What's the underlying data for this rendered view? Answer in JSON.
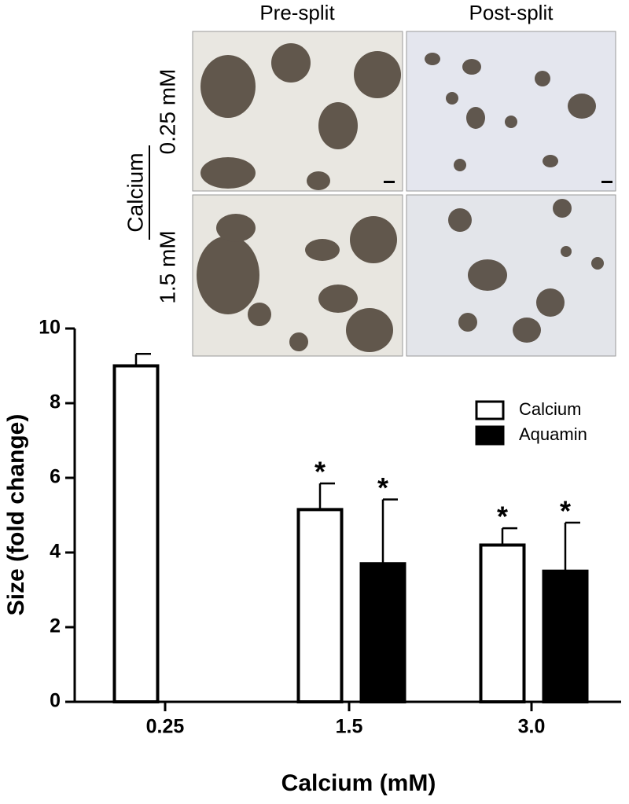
{
  "chart_data": {
    "type": "bar",
    "panel": {
      "columns": [
        "Pre-split",
        "Post-split"
      ],
      "rows": [
        "0.25 mM",
        "1.5 mM"
      ],
      "row_group": "Calcium"
    },
    "x_label": "Calcium (mM)",
    "y_label": "Size (fold change)",
    "categories": [
      "0.25",
      "1.5",
      "3.0"
    ],
    "series": [
      {
        "name": "Calcium",
        "color": "#ffffff",
        "values": [
          9.0,
          5.15,
          4.2
        ],
        "errors": [
          0.32,
          0.7,
          0.45
        ],
        "significance": [
          null,
          "*",
          "*"
        ]
      },
      {
        "name": "Aquamin",
        "color": "#000000",
        "values": [
          null,
          3.7,
          3.5
        ],
        "errors": [
          null,
          1.72,
          1.3
        ],
        "significance": [
          null,
          "*",
          "*"
        ]
      }
    ],
    "ylim": [
      0,
      10
    ],
    "yticks": [
      0,
      2,
      4,
      6,
      8,
      10
    ],
    "legend": "upper right"
  }
}
